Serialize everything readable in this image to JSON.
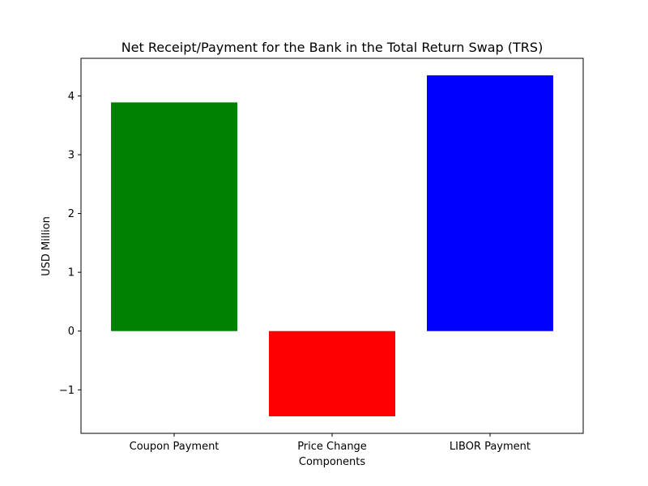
{
  "chart_data": {
    "type": "bar",
    "title": "Net Receipt/Payment for the Bank in the Total Return Swap (TRS)",
    "xlabel": "Components",
    "ylabel": "USD Million",
    "categories": [
      "Coupon Payment",
      "Price Change",
      "LIBOR Payment"
    ],
    "values": [
      3.89,
      -1.45,
      4.35
    ],
    "colors": [
      "#008000",
      "#ff0000",
      "#0000ff"
    ],
    "ylim": [
      -1.74,
      4.64
    ],
    "yticks": [
      -1,
      0,
      1,
      2,
      3,
      4
    ],
    "ytick_labels": [
      "−1",
      "0",
      "1",
      "2",
      "3",
      "4"
    ],
    "grid": false,
    "legend": "none"
  }
}
